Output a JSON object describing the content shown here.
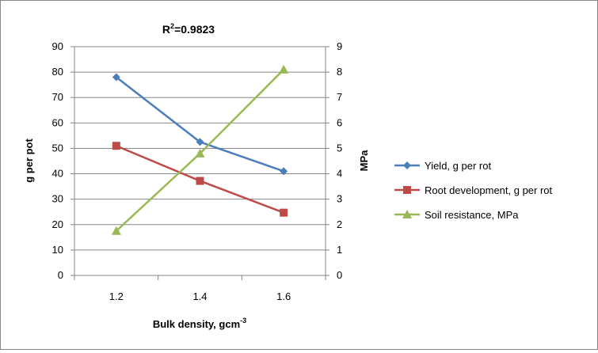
{
  "chart_data": {
    "type": "line",
    "title": {
      "main": "R",
      "sup": "2",
      "rest": "=0.9823"
    },
    "xlabel": {
      "main": "Bulk density, gcm",
      "sup": "-3"
    },
    "ylabel_left": "g per pot",
    "ylabel_right": "MPa",
    "x": [
      "1.2",
      "1.4",
      "1.6"
    ],
    "y_left": {
      "min": 0,
      "max": 90,
      "step": 10,
      "ticks": [
        "0",
        "10",
        "20",
        "30",
        "40",
        "50",
        "60",
        "70",
        "80",
        "90"
      ]
    },
    "y_right": {
      "min": 0,
      "max": 9,
      "step": 1,
      "ticks": [
        "0",
        "1",
        "2",
        "3",
        "4",
        "5",
        "6",
        "7",
        "8",
        "9"
      ]
    },
    "gridlines": true,
    "legend_position": "right",
    "series": [
      {
        "name": "Yield, g per rot",
        "axis": "left",
        "color": "#4a7ebb",
        "marker": "diamond",
        "values": [
          78,
          52.5,
          41
        ]
      },
      {
        "name": "Root development,  g per rot",
        "axis": "left",
        "color": "#be4b48",
        "marker": "square",
        "values": [
          51,
          37.2,
          24.7
        ]
      },
      {
        "name": "Soil resistance, MPa",
        "axis": "right",
        "color": "#98b954",
        "marker": "triangle",
        "values": [
          1.75,
          4.8,
          8.1
        ]
      }
    ]
  }
}
